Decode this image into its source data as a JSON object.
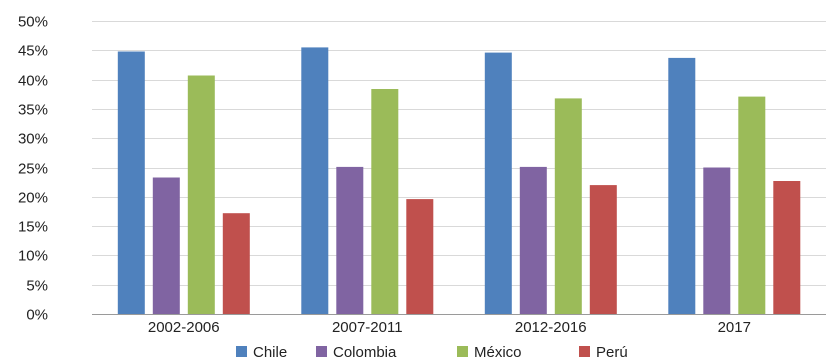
{
  "chart_data": {
    "type": "bar",
    "title": "",
    "xlabel": "",
    "ylabel": "",
    "categories": [
      "2002-2006",
      "2007-2011",
      "2012-2016",
      "2017"
    ],
    "series": [
      {
        "name": "Chile",
        "color": "#4F81BD",
        "values": [
          0.448,
          0.455,
          0.446,
          0.437
        ]
      },
      {
        "name": "Colombia",
        "color": "#8064A2",
        "values": [
          0.233,
          0.251,
          0.251,
          0.25
        ]
      },
      {
        "name": "México",
        "color": "#9BBB59",
        "values": [
          0.407,
          0.384,
          0.368,
          0.371
        ]
      },
      {
        "name": "Perú",
        "color": "#C0504D",
        "values": [
          0.172,
          0.196,
          0.22,
          0.227
        ]
      }
    ],
    "ylim": [
      0,
      0.5
    ],
    "yticks": [
      "0%",
      "5%",
      "10%",
      "15%",
      "20%",
      "25%",
      "30%",
      "35%",
      "40%",
      "45%",
      "50%"
    ],
    "grid": true,
    "legend_position": "bottom"
  }
}
